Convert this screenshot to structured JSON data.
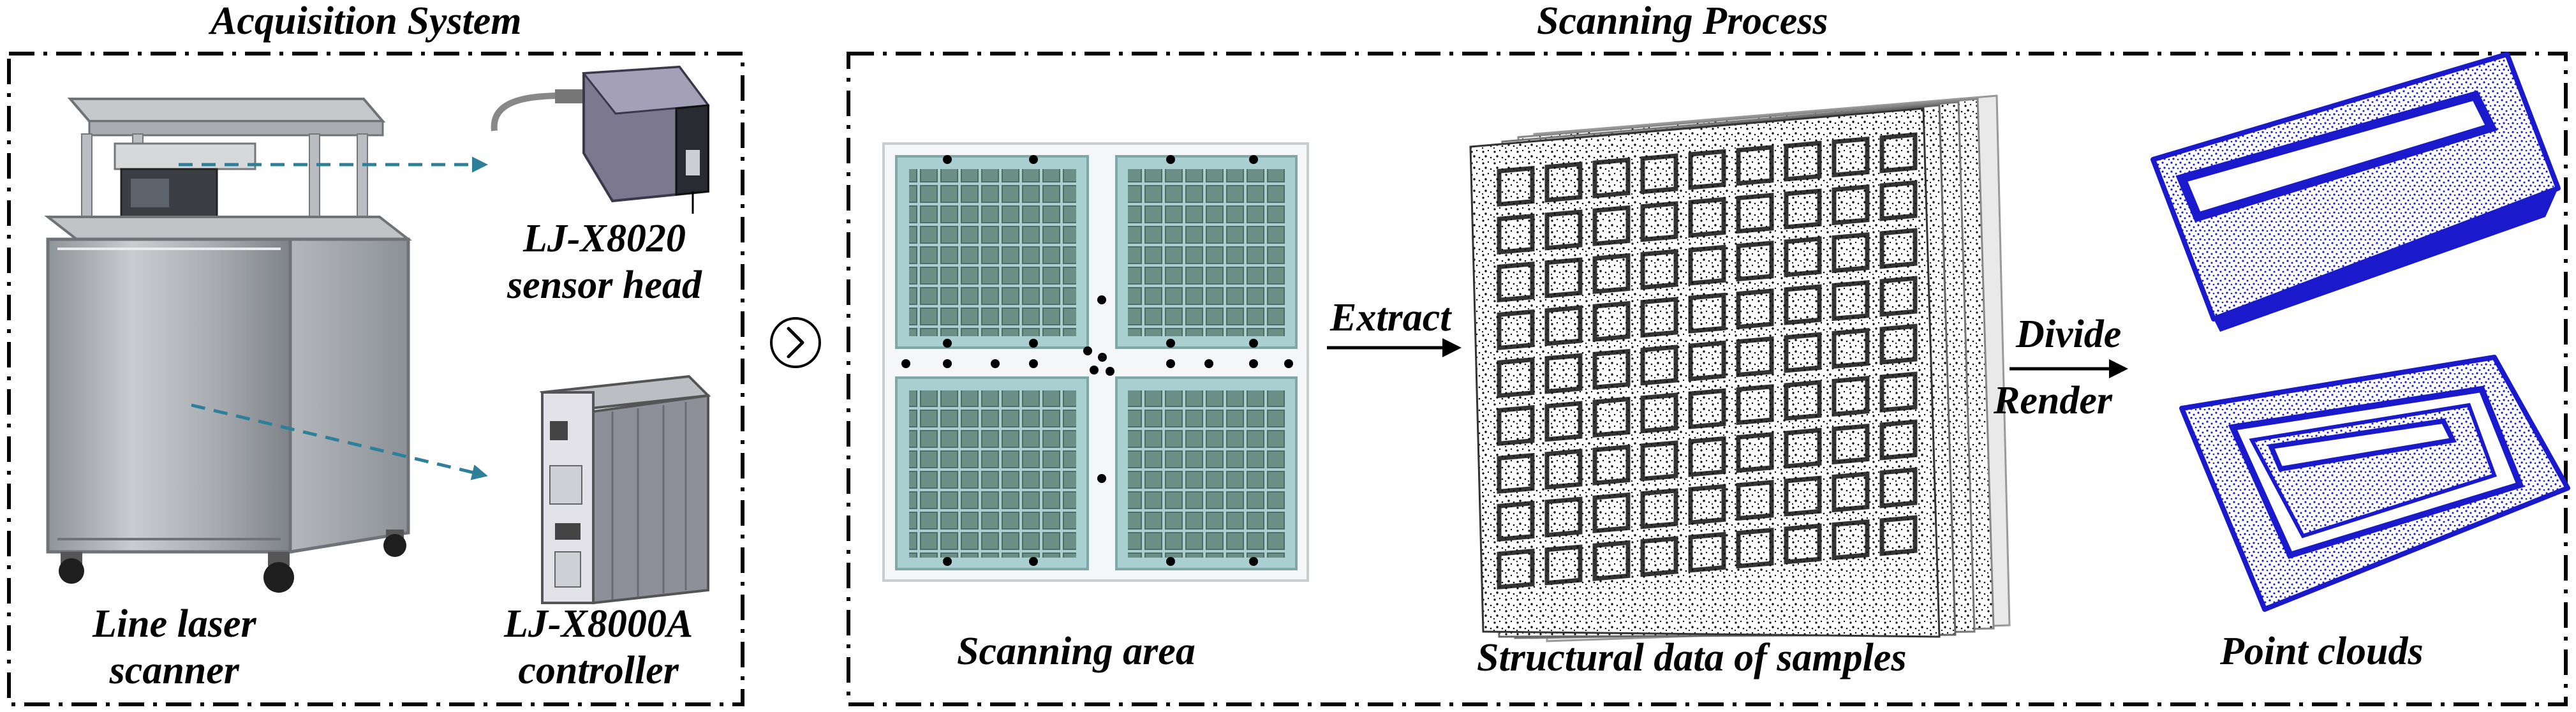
{
  "acquisition": {
    "title": "Acquisition System",
    "scanner_label": [
      "Line laser",
      "scanner"
    ],
    "sensor_label": [
      "LJ-X8020",
      "sensor head"
    ],
    "controller_label": [
      "LJ-X8000A",
      "controller"
    ]
  },
  "scanning": {
    "title": "Scanning Process",
    "area_label": "Scanning area",
    "structural_label": "Structural data of samples",
    "pointcloud_label": "Point clouds",
    "extract_label": "Extract",
    "divide_label": "Divide",
    "render_label": "Render"
  },
  "colors": {
    "leader_line": "#2e7f9a",
    "point_cloud": "#1a1acc",
    "frame": "#000000"
  },
  "icons": [
    "next-step-chevron-icon"
  ]
}
